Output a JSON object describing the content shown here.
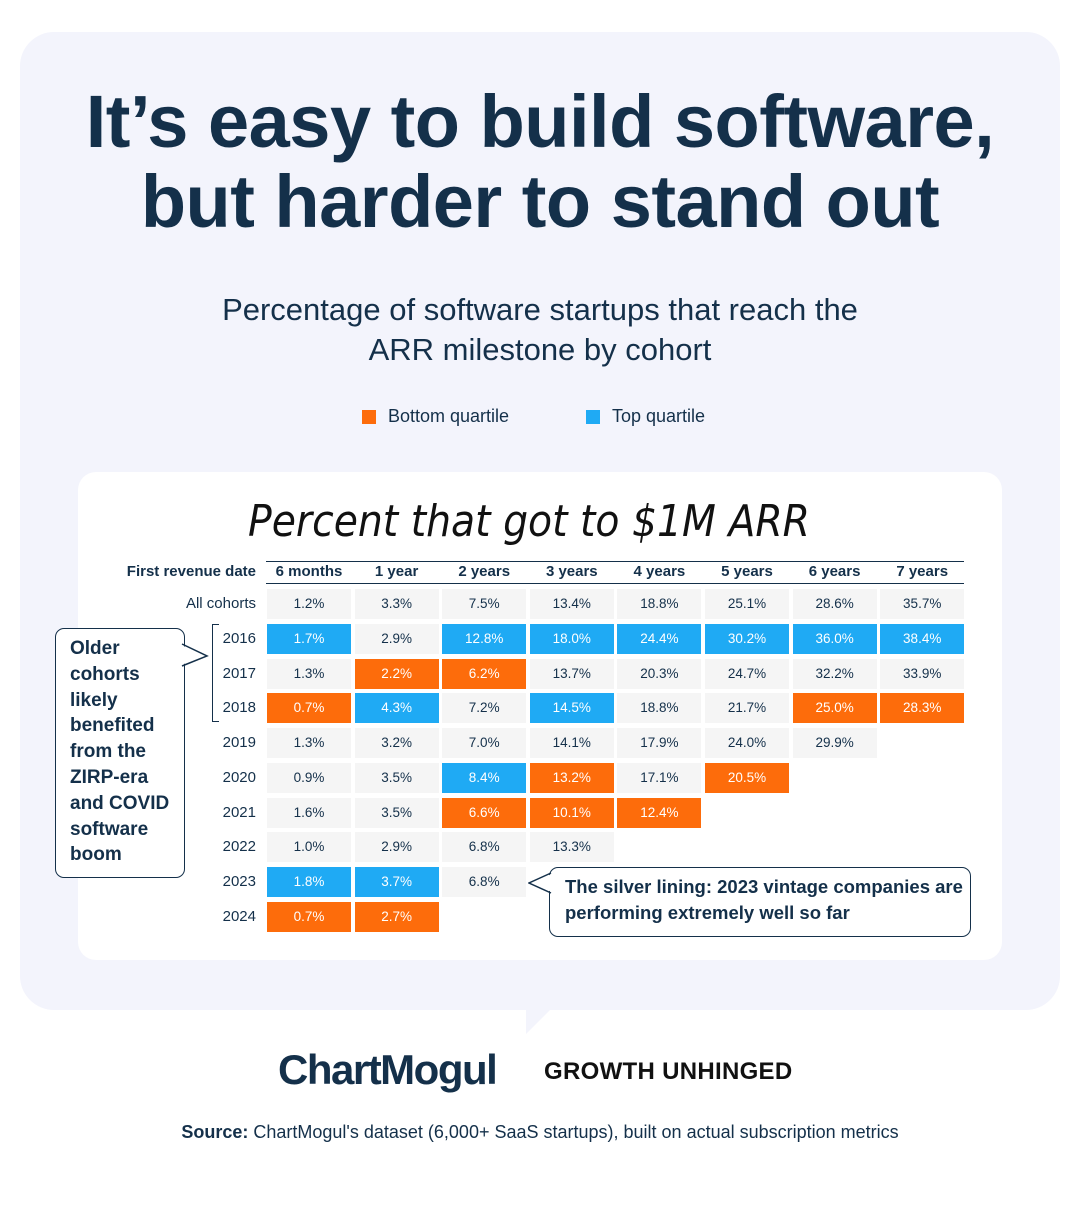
{
  "title_line1": "It’s easy to build software,",
  "title_line2": "but harder to stand out",
  "subtitle_line1": "Percentage of software startups that reach the",
  "subtitle_line2": "ARR milestone by cohort",
  "legend": [
    {
      "label": "Bottom quartile",
      "color": "#fd6c0b"
    },
    {
      "label": "Top quartile",
      "color": "#1faaf4"
    }
  ],
  "handwritten_title": "Percent that got to $1M ARR",
  "chart_data": {
    "type": "table",
    "row_header": "First revenue date",
    "columns": [
      "6 months",
      "1 year",
      "2 years",
      "3 years",
      "4 years",
      "5 years",
      "6 years",
      "7 years"
    ],
    "rows": [
      {
        "label": "All cohorts",
        "values": [
          "1.2%",
          "3.3%",
          "7.5%",
          "13.4%",
          "18.8%",
          "25.1%",
          "28.6%",
          "35.7%"
        ],
        "quartile": [
          "",
          "",
          "",
          "",
          "",
          "",
          "",
          ""
        ]
      },
      {
        "label": "2016",
        "values": [
          "1.7%",
          "2.9%",
          "12.8%",
          "18.0%",
          "24.4%",
          "30.2%",
          "36.0%",
          "38.4%"
        ],
        "quartile": [
          "top",
          "",
          "top",
          "top",
          "top",
          "top",
          "top",
          "top"
        ]
      },
      {
        "label": "2017",
        "values": [
          "1.3%",
          "2.2%",
          "6.2%",
          "13.7%",
          "20.3%",
          "24.7%",
          "32.2%",
          "33.9%"
        ],
        "quartile": [
          "",
          "bottom",
          "bottom",
          "",
          "",
          "",
          "",
          ""
        ]
      },
      {
        "label": "2018",
        "values": [
          "0.7%",
          "4.3%",
          "7.2%",
          "14.5%",
          "18.8%",
          "21.7%",
          "25.0%",
          "28.3%"
        ],
        "quartile": [
          "bottom",
          "top",
          "",
          "top",
          "",
          "",
          "bottom",
          "bottom"
        ]
      },
      {
        "label": "2019",
        "values": [
          "1.3%",
          "3.2%",
          "7.0%",
          "14.1%",
          "17.9%",
          "24.0%",
          "29.9%"
        ],
        "quartile": [
          "",
          "",
          "",
          "",
          "",
          "",
          ""
        ]
      },
      {
        "label": "2020",
        "values": [
          "0.9%",
          "3.5%",
          "8.4%",
          "13.2%",
          "17.1%",
          "20.5%"
        ],
        "quartile": [
          "",
          "",
          "top",
          "bottom",
          "",
          "bottom"
        ]
      },
      {
        "label": "2021",
        "values": [
          "1.6%",
          "3.5%",
          "6.6%",
          "10.1%",
          "12.4%"
        ],
        "quartile": [
          "",
          "",
          "bottom",
          "bottom",
          "bottom"
        ]
      },
      {
        "label": "2022",
        "values": [
          "1.0%",
          "2.9%",
          "6.8%",
          "13.3%"
        ],
        "quartile": [
          "",
          "",
          "",
          ""
        ]
      },
      {
        "label": "2023",
        "values": [
          "1.8%",
          "3.7%",
          "6.8%"
        ],
        "quartile": [
          "top",
          "top",
          ""
        ]
      },
      {
        "label": "2024",
        "values": [
          "0.7%",
          "2.7%"
        ],
        "quartile": [
          "bottom",
          "bottom"
        ]
      }
    ]
  },
  "callout_left": "Older cohorts likely benefited from the ZIRP-era and COVID software boom",
  "callout_right": "The silver lining: 2023 vintage companies are performing extremely well so far",
  "logos": {
    "chartmogul": "ChartMogul",
    "growth_unhinged": "GROWTH UNHINGED"
  },
  "source": {
    "label": "Source:",
    "text": "ChartMogul's dataset (6,000+ SaaS startups), built on actual subscription metrics"
  }
}
